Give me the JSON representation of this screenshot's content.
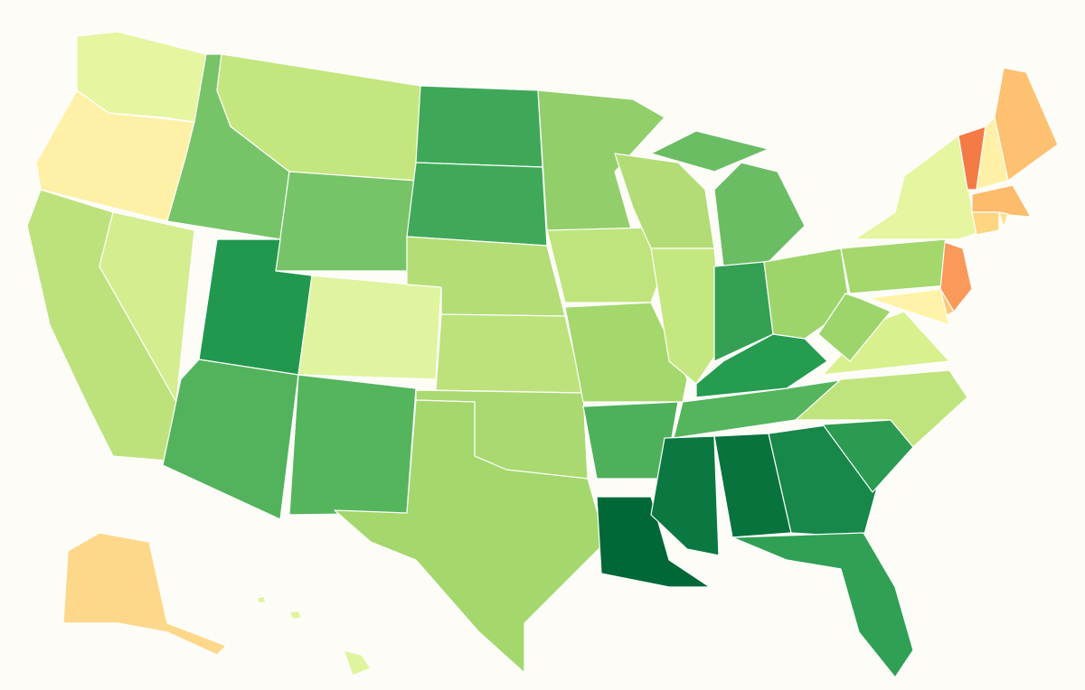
{
  "map": {
    "colors": [
      "#e6f5a0",
      "#fff0a8",
      "#bde27c",
      "#d3ed8f",
      "#77c468",
      "#c3e67e",
      "#77c468",
      "#22984f",
      "#e0f4a0",
      "#52b35c",
      "#55b55d",
      "#3ea858",
      "#40a959",
      "#b4dd76",
      "#bde27c",
      "#a9d970",
      "#a4d76c",
      "#92ce6a",
      "#c0e47d",
      "#a4d76c",
      "#4fb05b",
      "#006837",
      "#b2dc75",
      "#c5e77f",
      "#6bbd63",
      "#6bbd63",
      "#34a054",
      "#9dd56b",
      "#259c50",
      "#55b55d",
      "#0a7840",
      "#09733d",
      "#17874a",
      "#30a055",
      "#2b9b51",
      "#c0e47d",
      "#d9f08f",
      "#9dd56b",
      "#a4d76c",
      "#e6f5a0",
      "#f47b46",
      "#fff0a8",
      "#fdc171",
      "#fdbb6c",
      "#fed580",
      "#fee08b",
      "#fa9a5a",
      "#fec877",
      "#fff3a9",
      "#fed88a",
      "#e0f4a0",
      "#e0f4a0",
      "#e0f4a0"
    ]
  }
}
